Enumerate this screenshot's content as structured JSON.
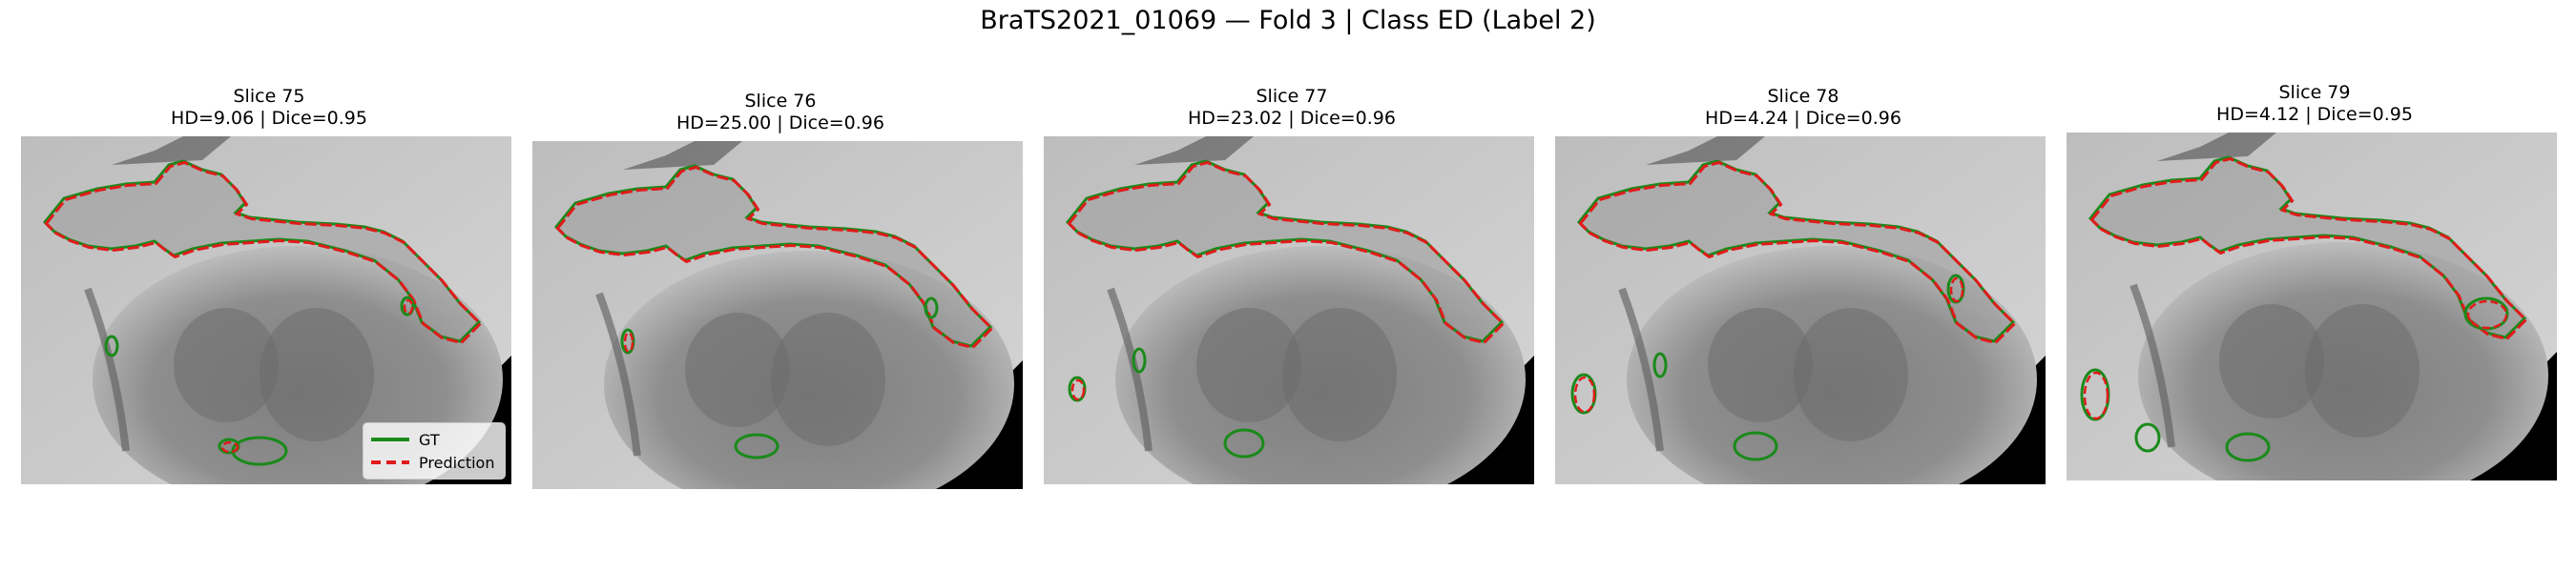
{
  "figure": {
    "title": "BraTS2021_01069 — Fold 3 | Class ED (Label 2)"
  },
  "legend": [
    {
      "label": "GT",
      "color": "#1a8a1a",
      "style": "solid"
    },
    {
      "label": "Prediction",
      "color": "#e01b1b",
      "style": "dashed"
    }
  ],
  "colors": {
    "gt": "#1a8a1a",
    "prediction": "#e01b1b",
    "background": "#000000"
  },
  "panels": [
    {
      "slice": "Slice 75",
      "metrics": "HD=9.06 | Dice=0.95"
    },
    {
      "slice": "Slice 76",
      "metrics": "HD=25.00 | Dice=0.96"
    },
    {
      "slice": "Slice 77",
      "metrics": "HD=23.02 | Dice=0.96"
    },
    {
      "slice": "Slice 78",
      "metrics": "HD=4.24 | Dice=0.96"
    },
    {
      "slice": "Slice 79",
      "metrics": "HD=4.12 | Dice=0.95"
    }
  ]
}
